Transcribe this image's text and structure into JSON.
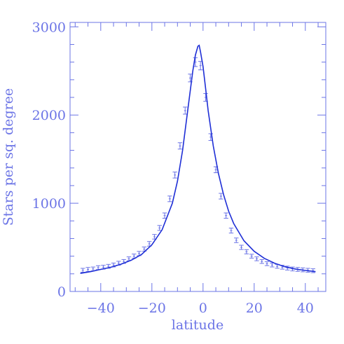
{
  "chart_data": {
    "type": "line",
    "xlabel": "latitude",
    "ylabel": "Stars per sq. degree",
    "xlim": [
      -52,
      48
    ],
    "ylim": [
      0,
      3050
    ],
    "x_ticks": [
      -40,
      -20,
      0,
      20,
      40
    ],
    "x_tick_labels": [
      "−40",
      "−20",
      "0",
      "20",
      "40"
    ],
    "y_ticks": [
      0,
      1000,
      2000,
      3000
    ],
    "y_tick_labels": [
      "0",
      "1000",
      "2000",
      "3000"
    ],
    "x_minor_step": 5,
    "y_minor_step": 200,
    "grid": false,
    "colors": {
      "axis": "#6b74e6",
      "model": "#1f2fd6",
      "data": "#6b74e6"
    },
    "series": [
      {
        "style": "errorbars",
        "x": [
          -47,
          -45,
          -43,
          -41,
          -39,
          -37,
          -35,
          -33,
          -31,
          -29,
          -27,
          -25,
          -23,
          -21,
          -19,
          -17,
          -15,
          -13,
          -11,
          -9,
          -7,
          -5,
          -3,
          -1,
          1,
          3,
          5,
          7,
          9,
          11,
          13,
          15,
          17,
          19,
          21,
          23,
          25,
          27,
          29,
          31,
          33,
          35,
          37,
          39,
          41,
          43
        ],
        "y": [
          240,
          250,
          255,
          270,
          275,
          285,
          300,
          320,
          340,
          370,
          400,
          430,
          480,
          540,
          620,
          720,
          860,
          1050,
          1320,
          1650,
          2050,
          2420,
          2600,
          2560,
          2200,
          1750,
          1380,
          1080,
          860,
          690,
          580,
          500,
          450,
          400,
          370,
          340,
          315,
          300,
          285,
          275,
          265,
          255,
          250,
          245,
          240,
          235
        ],
        "err": [
          22,
          22,
          22,
          22,
          22,
          22,
          22,
          22,
          22,
          22,
          24,
          24,
          24,
          26,
          26,
          28,
          30,
          32,
          34,
          36,
          40,
          44,
          50,
          48,
          44,
          38,
          34,
          32,
          30,
          28,
          26,
          24,
          24,
          22,
          22,
          22,
          22,
          22,
          22,
          22,
          22,
          22,
          22,
          22,
          22,
          22
        ]
      },
      {
        "style": "line",
        "x": [
          -48,
          -44,
          -40,
          -36,
          -32,
          -28,
          -24,
          -20,
          -16,
          -12,
          -10,
          -8,
          -6,
          -4,
          -3,
          -2,
          -1.5,
          -1,
          0,
          1,
          2,
          4,
          6,
          8,
          10,
          12,
          16,
          20,
          24,
          28,
          32,
          36,
          40,
          44
        ],
        "y": [
          205,
          225,
          250,
          275,
          310,
          355,
          420,
          530,
          700,
          1000,
          1250,
          1600,
          2050,
          2500,
          2680,
          2780,
          2790,
          2720,
          2550,
          2300,
          2050,
          1650,
          1340,
          1100,
          910,
          770,
          575,
          455,
          375,
          320,
          280,
          255,
          238,
          225
        ]
      }
    ]
  }
}
